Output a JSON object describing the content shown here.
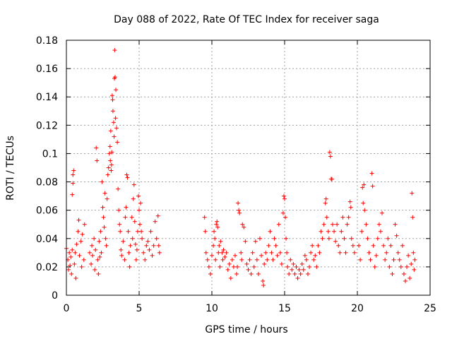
{
  "chart_data": {
    "type": "scatter",
    "title": "Day 088 of 2022, Rate Of TEC Index for receiver saga",
    "xlabel": "GPS time / hours",
    "ylabel": "ROTI / TECUs",
    "xlim": [
      0,
      25
    ],
    "ylim": [
      0,
      0.18
    ],
    "xticks": [
      0,
      5,
      10,
      15,
      20,
      25
    ],
    "yticks": [
      0,
      0.02,
      0.04,
      0.06,
      0.08,
      0.1,
      0.12,
      0.14,
      0.16,
      0.18
    ],
    "grid": true,
    "marker": "+",
    "color": "#ff0000",
    "series": [
      {
        "name": "ROTI",
        "points": [
          [
            0.0,
            0.033
          ],
          [
            0.1,
            0.025
          ],
          [
            0.15,
            0.018
          ],
          [
            0.2,
            0.03
          ],
          [
            0.25,
            0.021
          ],
          [
            0.3,
            0.027
          ],
          [
            0.35,
            0.015
          ],
          [
            0.4,
            0.032
          ],
          [
            0.45,
            0.085
          ],
          [
            0.5,
            0.088
          ],
          [
            0.4,
            0.071
          ],
          [
            0.45,
            0.079
          ],
          [
            0.55,
            0.022
          ],
          [
            0.6,
            0.03
          ],
          [
            0.65,
            0.012
          ],
          [
            0.7,
            0.036
          ],
          [
            0.8,
            0.045
          ],
          [
            0.85,
            0.053
          ],
          [
            0.9,
            0.028
          ],
          [
            1.0,
            0.038
          ],
          [
            1.05,
            0.02
          ],
          [
            1.1,
            0.043
          ],
          [
            1.2,
            0.025
          ],
          [
            1.25,
            0.05
          ],
          [
            1.6,
            0.03
          ],
          [
            1.7,
            0.022
          ],
          [
            1.75,
            0.035
          ],
          [
            1.8,
            0.028
          ],
          [
            1.9,
            0.04
          ],
          [
            1.95,
            0.018
          ],
          [
            2.0,
            0.032
          ],
          [
            2.05,
            0.104
          ],
          [
            2.1,
            0.095
          ],
          [
            2.15,
            0.025
          ],
          [
            2.2,
            0.015
          ],
          [
            2.25,
            0.038
          ],
          [
            2.3,
            0.027
          ],
          [
            2.35,
            0.045
          ],
          [
            2.4,
            0.03
          ],
          [
            2.45,
            0.08
          ],
          [
            2.5,
            0.062
          ],
          [
            2.55,
            0.055
          ],
          [
            2.6,
            0.048
          ],
          [
            2.65,
            0.072
          ],
          [
            2.7,
            0.04
          ],
          [
            2.75,
            0.035
          ],
          [
            2.8,
            0.068
          ],
          [
            2.85,
            0.085
          ],
          [
            2.9,
            0.09
          ],
          [
            2.95,
            0.1
          ],
          [
            3.0,
            0.105
          ],
          [
            3.02,
            0.095
          ],
          [
            3.05,
            0.116
          ],
          [
            3.08,
            0.088
          ],
          [
            3.1,
            0.092
          ],
          [
            3.12,
            0.101
          ],
          [
            3.15,
            0.141
          ],
          [
            3.18,
            0.138
          ],
          [
            3.2,
            0.13
          ],
          [
            3.25,
            0.122
          ],
          [
            3.28,
            0.112
          ],
          [
            3.3,
            0.153
          ],
          [
            3.32,
            0.173
          ],
          [
            3.35,
            0.154
          ],
          [
            3.38,
            0.125
          ],
          [
            3.4,
            0.145
          ],
          [
            3.45,
            0.118
          ],
          [
            3.5,
            0.108
          ],
          [
            3.55,
            0.075
          ],
          [
            3.6,
            0.06
          ],
          [
            3.65,
            0.05
          ],
          [
            3.7,
            0.045
          ],
          [
            3.75,
            0.032
          ],
          [
            3.8,
            0.028
          ],
          [
            3.9,
            0.038
          ],
          [
            4.0,
            0.025
          ],
          [
            4.05,
            0.055
          ],
          [
            4.1,
            0.062
          ],
          [
            4.15,
            0.085
          ],
          [
            4.2,
            0.083
          ],
          [
            4.25,
            0.045
          ],
          [
            4.3,
            0.03
          ],
          [
            4.35,
            0.02
          ],
          [
            4.4,
            0.035
          ],
          [
            4.5,
            0.055
          ],
          [
            4.55,
            0.04
          ],
          [
            4.6,
            0.068
          ],
          [
            4.65,
            0.078
          ],
          [
            4.7,
            0.052
          ],
          [
            4.75,
            0.036
          ],
          [
            4.8,
            0.025
          ],
          [
            4.85,
            0.032
          ],
          [
            4.9,
            0.045
          ],
          [
            4.95,
            0.07
          ],
          [
            5.0,
            0.06
          ],
          [
            5.05,
            0.05
          ],
          [
            5.1,
            0.065
          ],
          [
            5.15,
            0.045
          ],
          [
            5.2,
            0.04
          ],
          [
            5.3,
            0.03
          ],
          [
            5.4,
            0.025
          ],
          [
            5.5,
            0.035
          ],
          [
            5.6,
            0.038
          ],
          [
            5.7,
            0.032
          ],
          [
            5.8,
            0.045
          ],
          [
            5.9,
            0.028
          ],
          [
            6.0,
            0.035
          ],
          [
            6.1,
            0.052
          ],
          [
            6.2,
            0.04
          ],
          [
            6.3,
            0.056
          ],
          [
            6.35,
            0.035
          ],
          [
            6.4,
            0.03
          ],
          [
            9.5,
            0.055
          ],
          [
            9.55,
            0.045
          ],
          [
            9.6,
            0.03
          ],
          [
            9.7,
            0.025
          ],
          [
            9.8,
            0.02
          ],
          [
            9.9,
            0.015
          ],
          [
            10.0,
            0.028
          ],
          [
            10.1,
            0.035
          ],
          [
            10.15,
            0.045
          ],
          [
            10.2,
            0.04
          ],
          [
            10.25,
            0.025
          ],
          [
            10.3,
            0.05
          ],
          [
            10.35,
            0.052
          ],
          [
            10.4,
            0.048
          ],
          [
            10.45,
            0.03
          ],
          [
            10.5,
            0.035
          ],
          [
            10.55,
            0.02
          ],
          [
            10.6,
            0.038
          ],
          [
            10.7,
            0.03
          ],
          [
            10.75,
            0.025
          ],
          [
            10.8,
            0.032
          ],
          [
            10.9,
            0.027
          ],
          [
            11.0,
            0.03
          ],
          [
            11.1,
            0.018
          ],
          [
            11.2,
            0.022
          ],
          [
            11.3,
            0.012
          ],
          [
            11.4,
            0.025
          ],
          [
            11.5,
            0.02
          ],
          [
            11.6,
            0.028
          ],
          [
            11.7,
            0.015
          ],
          [
            11.75,
            0.02
          ],
          [
            11.8,
            0.065
          ],
          [
            11.85,
            0.06
          ],
          [
            11.9,
            0.058
          ],
          [
            12.0,
            0.03
          ],
          [
            12.05,
            0.025
          ],
          [
            12.1,
            0.05
          ],
          [
            12.2,
            0.048
          ],
          [
            12.3,
            0.038
          ],
          [
            12.4,
            0.022
          ],
          [
            12.5,
            0.018
          ],
          [
            12.6,
            0.025
          ],
          [
            12.7,
            0.015
          ],
          [
            12.8,
            0.03
          ],
          [
            12.9,
            0.02
          ],
          [
            13.0,
            0.038
          ],
          [
            13.1,
            0.025
          ],
          [
            13.2,
            0.015
          ],
          [
            13.3,
            0.04
          ],
          [
            13.4,
            0.028
          ],
          [
            13.5,
            0.01
          ],
          [
            13.55,
            0.007
          ],
          [
            13.6,
            0.022
          ],
          [
            13.7,
            0.03
          ],
          [
            13.8,
            0.025
          ],
          [
            13.9,
            0.035
          ],
          [
            14.0,
            0.045
          ],
          [
            14.1,
            0.03
          ],
          [
            14.2,
            0.025
          ],
          [
            14.3,
            0.04
          ],
          [
            14.4,
            0.035
          ],
          [
            14.5,
            0.028
          ],
          [
            14.6,
            0.05
          ],
          [
            14.7,
            0.03
          ],
          [
            14.8,
            0.022
          ],
          [
            14.9,
            0.058
          ],
          [
            14.95,
            0.07
          ],
          [
            15.0,
            0.068
          ],
          [
            15.05,
            0.055
          ],
          [
            15.1,
            0.04
          ],
          [
            15.15,
            0.03
          ],
          [
            15.2,
            0.02
          ],
          [
            15.3,
            0.015
          ],
          [
            15.4,
            0.025
          ],
          [
            15.5,
            0.018
          ],
          [
            15.6,
            0.022
          ],
          [
            15.7,
            0.015
          ],
          [
            15.8,
            0.02
          ],
          [
            15.9,
            0.012
          ],
          [
            16.0,
            0.018
          ],
          [
            16.1,
            0.015
          ],
          [
            16.2,
            0.022
          ],
          [
            16.3,
            0.018
          ],
          [
            16.4,
            0.028
          ],
          [
            16.5,
            0.025
          ],
          [
            16.6,
            0.015
          ],
          [
            16.7,
            0.02
          ],
          [
            16.8,
            0.03
          ],
          [
            16.9,
            0.035
          ],
          [
            17.0,
            0.025
          ],
          [
            17.1,
            0.028
          ],
          [
            17.2,
            0.02
          ],
          [
            17.3,
            0.035
          ],
          [
            17.4,
            0.03
          ],
          [
            17.5,
            0.045
          ],
          [
            17.6,
            0.04
          ],
          [
            17.7,
            0.05
          ],
          [
            17.8,
            0.065
          ],
          [
            17.85,
            0.068
          ],
          [
            17.9,
            0.055
          ],
          [
            18.0,
            0.045
          ],
          [
            18.05,
            0.04
          ],
          [
            18.1,
            0.101
          ],
          [
            18.15,
            0.098
          ],
          [
            18.2,
            0.082
          ],
          [
            18.25,
            0.082
          ],
          [
            18.3,
            0.05
          ],
          [
            18.4,
            0.045
          ],
          [
            18.5,
            0.038
          ],
          [
            18.6,
            0.05
          ],
          [
            18.7,
            0.035
          ],
          [
            18.8,
            0.03
          ],
          [
            18.9,
            0.045
          ],
          [
            19.0,
            0.055
          ],
          [
            19.1,
            0.04
          ],
          [
            19.2,
            0.03
          ],
          [
            19.3,
            0.05
          ],
          [
            19.4,
            0.055
          ],
          [
            19.5,
            0.066
          ],
          [
            19.55,
            0.062
          ],
          [
            19.6,
            0.04
          ],
          [
            19.7,
            0.035
          ],
          [
            19.8,
            0.03
          ],
          [
            20.1,
            0.035
          ],
          [
            20.2,
            0.025
          ],
          [
            20.3,
            0.045
          ],
          [
            20.35,
            0.076
          ],
          [
            20.4,
            0.065
          ],
          [
            20.45,
            0.078
          ],
          [
            20.5,
            0.06
          ],
          [
            20.6,
            0.05
          ],
          [
            20.7,
            0.04
          ],
          [
            20.8,
            0.03
          ],
          [
            20.9,
            0.025
          ],
          [
            21.0,
            0.086
          ],
          [
            21.05,
            0.077
          ],
          [
            21.1,
            0.035
          ],
          [
            21.2,
            0.02
          ],
          [
            21.3,
            0.028
          ],
          [
            21.4,
            0.04
          ],
          [
            21.5,
            0.05
          ],
          [
            21.6,
            0.045
          ],
          [
            21.7,
            0.058
          ],
          [
            21.8,
            0.035
          ],
          [
            21.9,
            0.025
          ],
          [
            22.0,
            0.03
          ],
          [
            22.1,
            0.04
          ],
          [
            22.2,
            0.02
          ],
          [
            22.3,
            0.035
          ],
          [
            22.4,
            0.015
          ],
          [
            22.5,
            0.025
          ],
          [
            22.6,
            0.05
          ],
          [
            22.7,
            0.042
          ],
          [
            22.8,
            0.03
          ],
          [
            22.9,
            0.025
          ],
          [
            23.0,
            0.02
          ],
          [
            23.1,
            0.035
          ],
          [
            23.2,
            0.015
          ],
          [
            23.3,
            0.01
          ],
          [
            23.4,
            0.02
          ],
          [
            23.5,
            0.028
          ],
          [
            23.6,
            0.012
          ],
          [
            23.7,
            0.022
          ],
          [
            23.75,
            0.072
          ],
          [
            23.8,
            0.055
          ],
          [
            23.85,
            0.03
          ],
          [
            23.9,
            0.018
          ],
          [
            23.95,
            0.025
          ]
        ]
      }
    ]
  }
}
